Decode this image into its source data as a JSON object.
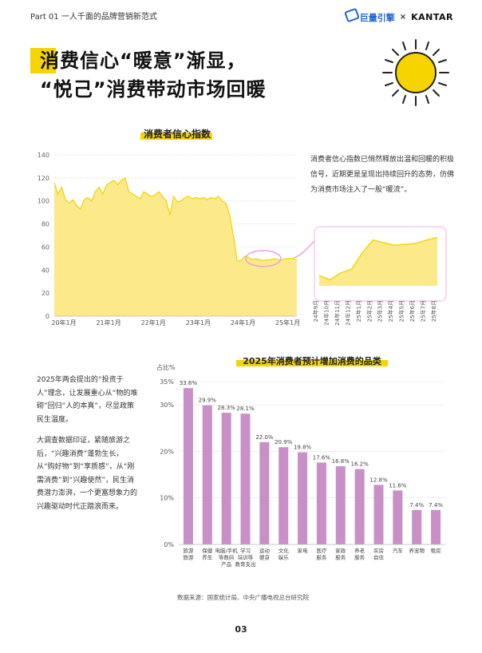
{
  "header": {
    "section": "Part 01 一人千面的品牌营销新范式",
    "logo_left": "巨量引擎",
    "logo_sep": "×",
    "logo_right": "KANTAR"
  },
  "title": {
    "line1": "消费信心“暖意”渐显，",
    "line2": "“悦己”消费带动市场回暖"
  },
  "colors": {
    "accent_yellow": "#f5d400",
    "bar_purple": "#c98fc7",
    "line_fill": "#fbe98a",
    "highlight_circle": "#e7a3e0"
  },
  "description": "消费者信心指数已悄然释放出温和回暖的积极信号，近期更是呈现出持续回升的态势，仿佛为消费市场注入了一股“暖流”。",
  "side_text": [
    "2025年两会提出的“投资于人”理念，让发展重心从“物的堆砌”回归“人的本真”，尽显政策民生温度。",
    "大调查数据印证，紧随旅游之后，“兴趣消费”蓬勃生长，从“购好物”到“享质感”，从“刚需消费”到“兴趣使然”，民生消费潜力澎湃，一个更富想象力的兴趣驱动时代正踏浪而来。"
  ],
  "chart_data": [
    {
      "type": "area",
      "title": "消费者信心指数",
      "y_ticks": [
        "0",
        "20",
        "40",
        "60",
        "80",
        "100",
        "120",
        "140"
      ],
      "ylim": [
        0,
        140
      ],
      "x_ticks": [
        "20年1月",
        "21年1月",
        "22年1月",
        "23年1月",
        "24年1月",
        "25年1月"
      ],
      "x_tick_index": [
        0,
        12,
        24,
        36,
        48,
        60
      ],
      "xlim": [
        0,
        65
      ],
      "grid": true,
      "values": [
        116,
        106,
        112,
        101,
        98,
        101,
        96,
        93,
        101,
        103,
        100,
        108,
        112,
        106,
        114,
        116,
        118,
        114,
        118,
        120,
        108,
        106,
        104,
        102,
        108,
        106,
        104,
        105,
        108,
        104,
        100,
        88,
        104,
        99,
        100,
        103,
        104,
        102,
        103,
        102,
        103,
        101,
        103,
        102,
        104,
        100,
        98,
        88,
        70,
        48,
        48,
        52,
        51,
        49,
        50,
        49,
        48,
        49,
        49,
        50,
        49,
        49,
        50,
        50,
        50,
        49
      ],
      "values_note_free": true
    },
    {
      "type": "line",
      "x_labels": [
        "24年9月",
        "24年10月",
        "24年11月",
        "24年12月",
        "25年1月",
        "25年2月",
        "25年3月",
        "25年4月",
        "25年5月",
        "25年6月",
        "25年7月",
        "25年8月"
      ],
      "values": [
        85.7,
        85.2,
        86.0,
        86.4,
        88.3,
        89.8,
        89.5,
        89.2,
        89.3,
        89.4,
        89.8,
        90.1
      ]
    },
    {
      "type": "bar",
      "title": "2025年消费者预计增加消费的品类",
      "ylabel": "占比%",
      "y_ticks": [
        "0%",
        "10%",
        "20%",
        "30%",
        "35%"
      ],
      "ylim": [
        0,
        35
      ],
      "categories": [
        "旅游\n旅游",
        "保健\n养生",
        "电脑/手机\n等数码\n产品",
        "学习\n培训等\n教育支出",
        "运动\n健身",
        "文化\n娱乐",
        "家电",
        "医疗\n服务",
        "家政\n服务",
        "养老\n服务",
        "买房\n自住",
        "汽车",
        "养宠物",
        "租房"
      ],
      "values": [
        33.6,
        29.9,
        28.3,
        28.1,
        22.0,
        20.9,
        19.8,
        17.6,
        16.8,
        16.2,
        12.8,
        11.6,
        7.4,
        7.4
      ],
      "value_labels": [
        "33.6%",
        "29.9%",
        "28.3%",
        "28.1%",
        "22.0%",
        "20.9%",
        "19.8%",
        "17.6%",
        "16.8%",
        "16.2%",
        "12.8%",
        "11.6%",
        "7.4%",
        "7.4%"
      ]
    }
  ],
  "source": "数据来源：国家统计局、中央广播电视总台研究院",
  "page_number": "03"
}
